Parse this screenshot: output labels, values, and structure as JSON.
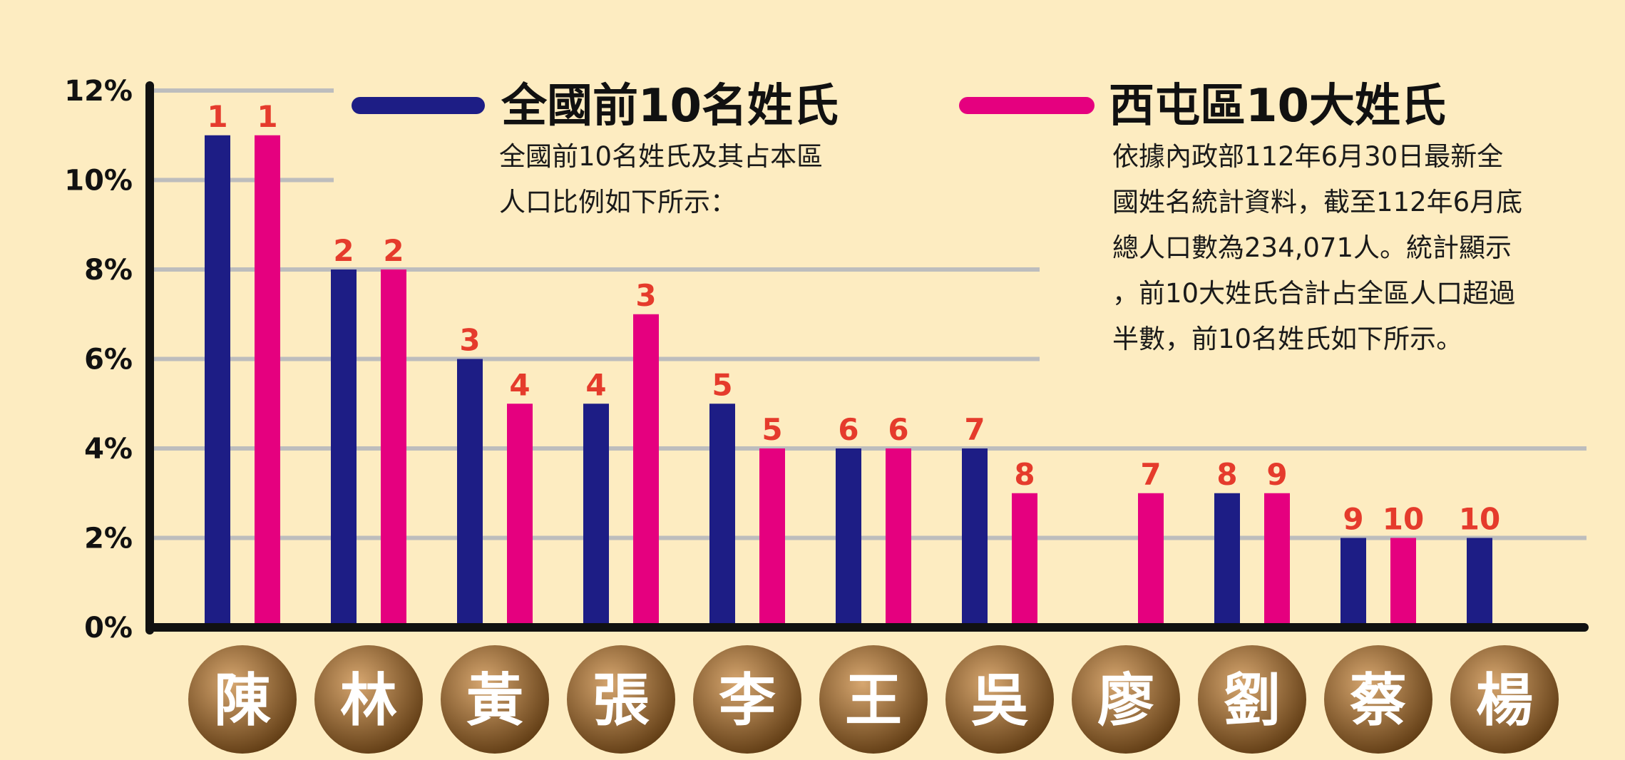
{
  "colors": {
    "background": "#fdecc1",
    "national": "#1d1d85",
    "local": "#e5007f",
    "rank_label": "#e53b2c",
    "grid": "#bdbdbd",
    "axis": "#111111",
    "badge_light": "#d7a770",
    "badge_dark": "#5e3a12"
  },
  "legend": {
    "national": "全國前10名姓氏",
    "local": "西屯區10大姓氏"
  },
  "notes": {
    "national_lines": [
      "全國前10名姓氏及其占本區",
      "人口比例如下所示："
    ],
    "local_lines": [
      "依據內政部112年6月30日最新全",
      "國姓名統計資料，截至112年6月底",
      "總人口數為234,071人。統計顯示",
      "，前10大姓氏合計占全區人口超過",
      "半數，前10名姓氏如下所示。"
    ]
  },
  "chart_data": {
    "type": "bar",
    "title": "",
    "xlabel": "",
    "ylabel": "",
    "ylim": [
      0,
      12
    ],
    "y_ticks": [
      "0%",
      "2%",
      "4%",
      "6%",
      "8%",
      "10%",
      "12%"
    ],
    "grid": true,
    "legend_position": "top",
    "categories": [
      "陳",
      "林",
      "黃",
      "張",
      "李",
      "王",
      "吳",
      "廖",
      "劉",
      "蔡",
      "楊"
    ],
    "series": [
      {
        "name": "全國前10名姓氏",
        "values": [
          11,
          8,
          6,
          5,
          5,
          4,
          4,
          null,
          3,
          2,
          2
        ],
        "rank_labels": [
          "1",
          "2",
          "3",
          "4",
          "5",
          "6",
          "7",
          null,
          "8",
          "9",
          "10"
        ]
      },
      {
        "name": "西屯區10大姓氏",
        "values": [
          11,
          8,
          5,
          7,
          4,
          4,
          3,
          3,
          3,
          2,
          null
        ],
        "rank_labels": [
          "1",
          "2",
          "4",
          "3",
          "5",
          "6",
          "8",
          "7",
          "9",
          "10",
          null
        ]
      }
    ]
  }
}
